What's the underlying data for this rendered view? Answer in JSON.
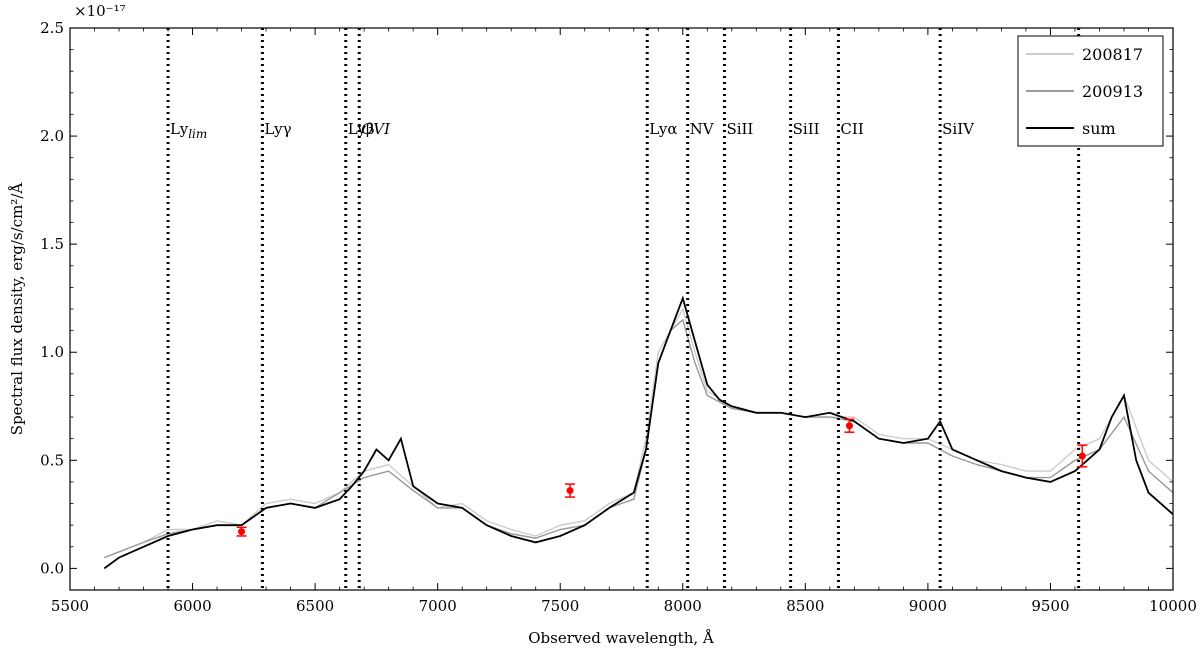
{
  "chart_data": {
    "type": "line",
    "title": "",
    "xlabel": "Observed wavelength, Å",
    "ylabel": "Spectral flux density, erg/s/cm²/Å",
    "y_multiplier": "×10⁻¹⁷",
    "xlim": [
      5500,
      10000
    ],
    "ylim": [
      -0.1,
      2.5
    ],
    "x_ticks": [
      5500,
      6000,
      6500,
      7000,
      7500,
      8000,
      8500,
      9000,
      9500,
      10000
    ],
    "y_ticks": [
      0.0,
      0.5,
      1.0,
      1.5,
      2.0,
      2.5
    ],
    "x_tick_labels": [
      "5500",
      "6000",
      "6500",
      "7000",
      "7500",
      "8000",
      "8500",
      "9000",
      "9500",
      "10000"
    ],
    "y_tick_labels": [
      "0.0",
      "0.5",
      "1.0",
      "1.5",
      "2.0",
      "2.5"
    ],
    "grid": false,
    "legend_position": "top-right",
    "colors": {
      "series_200817": "#cccccc",
      "series_200913": "#999999",
      "series_sum": "#000000",
      "photometry": "#ff0000"
    },
    "series": [
      {
        "name": "200817",
        "x": [
          5640,
          5800,
          5900,
          6000,
          6100,
          6200,
          6300,
          6400,
          6500,
          6600,
          6700,
          6800,
          6900,
          7000,
          7100,
          7200,
          7300,
          7400,
          7500,
          7600,
          7700,
          7800,
          7850,
          7900,
          7950,
          8000,
          8050,
          8100,
          8200,
          8300,
          8400,
          8500,
          8600,
          8700,
          8800,
          8900,
          9000,
          9100,
          9200,
          9300,
          9400,
          9500,
          9600,
          9700,
          9800,
          9900,
          10000
        ],
        "y": [
          0.05,
          0.12,
          0.18,
          0.18,
          0.22,
          0.2,
          0.3,
          0.32,
          0.3,
          0.35,
          0.45,
          0.48,
          0.38,
          0.28,
          0.3,
          0.22,
          0.18,
          0.15,
          0.2,
          0.22,
          0.3,
          0.35,
          0.6,
          1.0,
          1.1,
          1.2,
          1.0,
          0.82,
          0.75,
          0.72,
          0.72,
          0.7,
          0.7,
          0.7,
          0.62,
          0.6,
          0.6,
          0.55,
          0.5,
          0.48,
          0.45,
          0.45,
          0.55,
          0.6,
          0.8,
          0.5,
          0.4
        ]
      },
      {
        "name": "200913",
        "x": [
          5640,
          5800,
          5900,
          6000,
          6100,
          6200,
          6300,
          6400,
          6500,
          6600,
          6700,
          6800,
          6900,
          7000,
          7100,
          7200,
          7300,
          7400,
          7500,
          7600,
          7700,
          7800,
          7850,
          7900,
          7950,
          8000,
          8050,
          8100,
          8200,
          8300,
          8400,
          8500,
          8600,
          8700,
          8800,
          8900,
          9000,
          9100,
          9200,
          9300,
          9400,
          9500,
          9600,
          9700,
          9800,
          9900,
          10000
        ],
        "y": [
          0.05,
          0.12,
          0.16,
          0.18,
          0.2,
          0.2,
          0.28,
          0.3,
          0.28,
          0.35,
          0.42,
          0.45,
          0.36,
          0.28,
          0.28,
          0.2,
          0.16,
          0.14,
          0.18,
          0.2,
          0.28,
          0.32,
          0.55,
          0.95,
          1.1,
          1.15,
          0.95,
          0.8,
          0.74,
          0.72,
          0.72,
          0.7,
          0.7,
          0.68,
          0.6,
          0.58,
          0.58,
          0.52,
          0.48,
          0.45,
          0.42,
          0.42,
          0.5,
          0.55,
          0.7,
          0.45,
          0.35
        ]
      },
      {
        "name": "sum",
        "x": [
          5640,
          5700,
          5800,
          5900,
          6000,
          6100,
          6200,
          6300,
          6400,
          6500,
          6600,
          6650,
          6700,
          6750,
          6800,
          6850,
          6900,
          7000,
          7100,
          7200,
          7300,
          7400,
          7500,
          7600,
          7700,
          7800,
          7850,
          7900,
          7950,
          8000,
          8050,
          8100,
          8150,
          8200,
          8300,
          8400,
          8500,
          8600,
          8700,
          8800,
          8900,
          9000,
          9050,
          9100,
          9200,
          9300,
          9400,
          9500,
          9600,
          9700,
          9750,
          9800,
          9850,
          9900,
          10000
        ],
        "y": [
          0.0,
          0.05,
          0.1,
          0.15,
          0.18,
          0.2,
          0.2,
          0.28,
          0.3,
          0.28,
          0.32,
          0.38,
          0.45,
          0.55,
          0.5,
          0.6,
          0.38,
          0.3,
          0.28,
          0.2,
          0.15,
          0.12,
          0.15,
          0.2,
          0.28,
          0.35,
          0.55,
          0.95,
          1.1,
          1.25,
          1.05,
          0.85,
          0.78,
          0.75,
          0.72,
          0.72,
          0.7,
          0.72,
          0.68,
          0.6,
          0.58,
          0.6,
          0.68,
          0.55,
          0.5,
          0.45,
          0.42,
          0.4,
          0.45,
          0.55,
          0.7,
          0.8,
          0.5,
          0.35,
          0.25
        ]
      }
    ],
    "photometry_points": [
      {
        "x": 6200,
        "y": 0.17,
        "yerr": 0.02
      },
      {
        "x": 7540,
        "y": 0.36,
        "yerr": 0.03
      },
      {
        "x": 8680,
        "y": 0.66,
        "yerr": 0.03
      },
      {
        "x": 9630,
        "y": 0.52,
        "yerr": 0.05
      }
    ],
    "vertical_lines": [
      {
        "x": 5900,
        "label": "Ly",
        "sub": "lim"
      },
      {
        "x": 6285,
        "label": "Lyγ",
        "sub": ""
      },
      {
        "x": 6625,
        "label": "Lyβ",
        "sub": ""
      },
      {
        "x": 6680,
        "label": "OVI",
        "sub": ""
      },
      {
        "x": 7855,
        "label": "Lyα",
        "sub": ""
      },
      {
        "x": 8020,
        "label": "NV",
        "sub": ""
      },
      {
        "x": 8170,
        "label": "SiII",
        "sub": ""
      },
      {
        "x": 8440,
        "label": "SiII",
        "sub": ""
      },
      {
        "x": 8635,
        "label": "CII",
        "sub": ""
      },
      {
        "x": 9050,
        "label": "SiIV",
        "sub": ""
      },
      {
        "x": 9615,
        "label": "",
        "sub": ""
      }
    ],
    "legend": [
      {
        "label": "200817",
        "color": "#cccccc"
      },
      {
        "label": "200913",
        "color": "#999999"
      },
      {
        "label": "sum",
        "color": "#000000"
      }
    ]
  }
}
